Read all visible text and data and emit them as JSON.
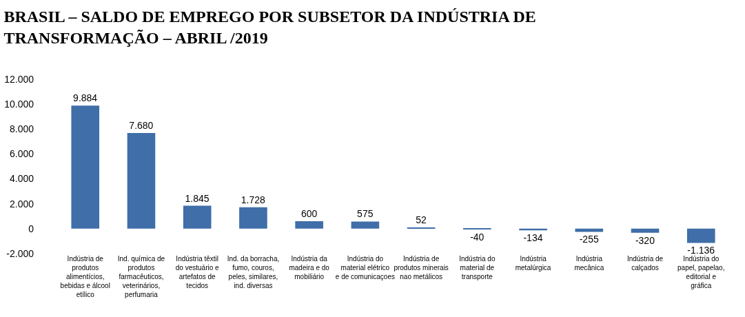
{
  "chart_data": {
    "type": "bar",
    "title": "BRASIL – SALDO DE EMPREGO POR SUBSETOR DA INDÚSTRIA DE TRANSFORMAÇÃO – ABRIL /2019",
    "categories": [
      "Indústria de produtos alimentícios, bebidas e álcool etílico",
      "Ind. química de produtos farmacêuticos, veterinários, perfumaria",
      "Indústria têxtil do vestuário e artefatos de tecidos",
      "Ind. da borracha, fumo, couros, peles, similares, ind. diversas",
      "Indústria da madeira e do mobiliário",
      "Indústria do material elétrico e de comunicaçoes",
      "Indústria de produtos minerais nao metálicos",
      "Indústria do material de transporte",
      "Indústria metalúrgica",
      "Indústria mecânica",
      "Indústria de calçados",
      "Indústria do papel, papelao, editorial e gráfica"
    ],
    "values": [
      9884,
      7680,
      1845,
      1728,
      600,
      575,
      52,
      -40,
      -134,
      -255,
      -320,
      -1136
    ],
    "value_labels": [
      "9.884",
      "7.680",
      "1.845",
      "1.728",
      "600",
      "575",
      "52",
      "-40",
      "-134",
      "-255",
      "-320",
      "-1.136"
    ],
    "color": "#3f6ea8",
    "ylim": [
      -2000,
      12000
    ],
    "yticks": [
      {
        "value": -2000,
        "label": "-2.000"
      },
      0,
      {
        "value": 2000,
        "label": "2.000"
      },
      {
        "value": 4000,
        "label": "4.000"
      },
      {
        "value": 6000,
        "label": "6.000"
      },
      {
        "value": 8000,
        "label": "8.000"
      },
      {
        "value": 10000,
        "label": "10.000"
      },
      {
        "value": 12000,
        "label": "12.000"
      }
    ],
    "grid": false
  }
}
